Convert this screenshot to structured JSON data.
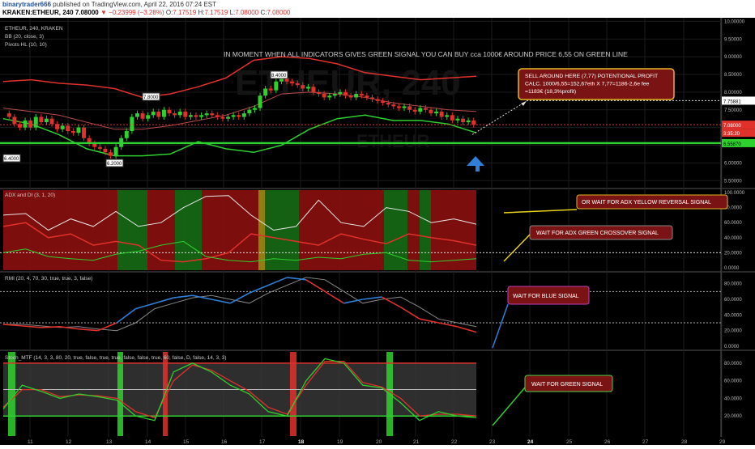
{
  "header": {
    "user": "binarytrader666",
    "published": "published on TradingView.com, April 22, 2016 07:24 EST",
    "symbol": "KRAKEN:ETHEUR, 240",
    "last": "7.08000",
    "change": "▼ −0.23999 (−3.28%)",
    "o_label": "O:",
    "o": "7.17519",
    "h_label": "H:",
    "h": "7.17519",
    "l_label": "L:",
    "l": "7.08000",
    "c_label": "C:",
    "c": "7.08000"
  },
  "panes": {
    "main": {
      "legend": [
        "ETHEUR, 240, KRAKEN",
        "BB (20, close, 3)",
        "Pivots HL (10, 10)"
      ],
      "watermark": "ETHEUR, 240",
      "watermark2": "ETHEUR",
      "top_note": "IN MOMENT WHEN ALL INDICATORS GIVES GREEN SIGNAL YOU CAN BUY  cca 1000€  AROUND PRICE 6,55 ON GREEN LINE",
      "sell_note": [
        "SELL AROUND HERE (7,77) POTENTIONAL PROFIT",
        "CALC. 1000/6,55=152,67eth X 7,77=1186-2,6e fee",
        "=1183€  (18,3%profit)"
      ],
      "pivot_labels": [
        "6.4000",
        "6.2000",
        "7.8000",
        "8.4000"
      ],
      "price_tags": {
        "target": "7.75881",
        "last": "7.08000",
        "countdown": "3:35:20",
        "support": "6.55870"
      },
      "axis": [
        "10.00000",
        "9.50000",
        "9.00000",
        "8.50000",
        "8.00000",
        "7.50000",
        "7.00000",
        "6.50000",
        "6.00000",
        "5.50000"
      ]
    },
    "adx": {
      "legend": "ADX and DI (3, 1, 20)",
      "note1": "OR WAIT FOR ADX YELLOW REVERSAL SIGNAL",
      "note2": "WAIT FOR ADX GREEN CROSSOVER SIGNAL",
      "axis": [
        "100.0000",
        "80.0000",
        "60.0000",
        "40.0000",
        "20.0000",
        "0.0000"
      ]
    },
    "rmi": {
      "legend": "RMI (20, 4, 70, 30, true, true, 3, false)",
      "note": "WAIT FOR BLUE SIGNAL",
      "axis": [
        "80.0000",
        "60.0000",
        "40.0000",
        "20.0000",
        "0.0000"
      ]
    },
    "stoch": {
      "legend": "Stoch_MTF (14, 3, 3, 80, 20, true, false, true, true, false, false, true, 60, false, D, false, 14, 3, 3)",
      "note": "WAIT FOR GREEN SIGNAL",
      "axis": [
        "80.0000",
        "60.0000",
        "40.0000",
        "20.0000"
      ]
    }
  },
  "x_axis": [
    "11",
    "12",
    "13",
    "14",
    "15",
    "16",
    "17",
    "18",
    "19",
    "20",
    "21",
    "22",
    "23",
    "24",
    "25",
    "26",
    "27",
    "28",
    "29"
  ],
  "colors": {
    "bg": "#000000",
    "red": "#e0312b",
    "green": "#2ed12e",
    "blue": "#2f7fd8",
    "yellow": "#e6d21a",
    "bgRed": "#8a1010",
    "bgGreen": "#166b16",
    "note": "#7a1414"
  },
  "chart_data": {
    "type": "line",
    "title": "ETHEUR, 240, KRAKEN",
    "x_dates": [
      "2016-04-11",
      "2016-04-12",
      "2016-04-13",
      "2016-04-14",
      "2016-04-15",
      "2016-04-16",
      "2016-04-17",
      "2016-04-18",
      "2016-04-19",
      "2016-04-20",
      "2016-04-21",
      "2016-04-22"
    ],
    "price_ylim": [
      5.3,
      10.1
    ],
    "candles_close": [
      7.3,
      7.1,
      7.0,
      7.2,
      7.0,
      7.3,
      7.15,
      7.25,
      7.1,
      6.95,
      7.05,
      6.9,
      6.85,
      7.0,
      6.7,
      6.55,
      6.45,
      6.4,
      6.3,
      6.2,
      6.45,
      6.7,
      6.9,
      7.3,
      7.4,
      7.25,
      7.35,
      7.45,
      7.3,
      7.5,
      7.4,
      7.35,
      7.45,
      7.3,
      7.35,
      7.3,
      7.35,
      7.4,
      7.35,
      7.3,
      7.25,
      7.3,
      7.35,
      7.3,
      7.4,
      7.5,
      7.55,
      7.9,
      8.1,
      8.05,
      8.3,
      8.4,
      8.3,
      8.25,
      8.2,
      8.1,
      8.15,
      8.0,
      7.95,
      7.85,
      7.9,
      7.95,
      8.0,
      7.9,
      7.85,
      7.95,
      7.9,
      7.85,
      7.8,
      7.75,
      7.7,
      7.65,
      7.6,
      7.55,
      7.6,
      7.5,
      7.45,
      7.55,
      7.5,
      7.4,
      7.45,
      7.3,
      7.35,
      7.2,
      7.25,
      7.15,
      7.2,
      7.08
    ],
    "bb_upper": [
      8.3,
      8.35,
      8.25,
      8.2,
      8.1,
      7.85,
      7.95,
      8.15,
      8.4,
      8.9,
      9.0,
      8.95,
      8.8,
      8.55,
      8.45,
      8.35,
      8.4,
      8.45
    ],
    "bb_middle": [
      7.55,
      7.45,
      7.35,
      7.15,
      6.95,
      6.95,
      7.05,
      7.2,
      7.35,
      7.6,
      7.95,
      8.0,
      7.95,
      7.85,
      7.7,
      7.6,
      7.5,
      7.45
    ],
    "bb_lower": [
      7.25,
      7.1,
      6.8,
      6.4,
      6.2,
      6.2,
      6.25,
      6.6,
      6.4,
      6.3,
      6.5,
      6.95,
      7.25,
      7.35,
      7.2,
      7.2,
      7.1,
      6.85
    ],
    "support_level": 6.5587,
    "target_level": 7.75881,
    "last_price": 7.08,
    "adx_ylim": [
      0,
      100
    ],
    "adx_series": [
      {
        "name": "ADX",
        "values": [
          70,
          72,
          50,
          65,
          55,
          75,
          55,
          60,
          80,
          95,
          96,
          70,
          50,
          55,
          90,
          60,
          55,
          80,
          75,
          60,
          65,
          58
        ]
      },
      {
        "name": "DI-",
        "values": [
          55,
          60,
          40,
          45,
          30,
          35,
          30,
          10,
          8,
          12,
          20,
          45,
          40,
          35,
          30,
          45,
          38,
          32,
          45,
          40,
          36,
          30
        ]
      },
      {
        "name": "DI+",
        "values": [
          20,
          25,
          15,
          12,
          10,
          18,
          22,
          30,
          35,
          15,
          10,
          8,
          12,
          10,
          14,
          12,
          18,
          20,
          10,
          8,
          10,
          12
        ]
      }
    ],
    "rmi_ylim": [
      0,
      90
    ],
    "rmi_series": [
      {
        "name": "RMI",
        "values": [
          28,
          26,
          24,
          25,
          22,
          20,
          30,
          48,
          55,
          62,
          65,
          60,
          55,
          68,
          78,
          88,
          85,
          70,
          55,
          60,
          63,
          50,
          35,
          30,
          25,
          18
        ]
      }
    ],
    "stoch_ylim": [
      0,
      90
    ],
    "stoch_series": [
      {
        "name": "%K",
        "values": [
          28,
          55,
          48,
          40,
          45,
          42,
          38,
          20,
          15,
          70,
          80,
          70,
          55,
          45,
          25,
          20,
          60,
          85,
          80,
          55,
          52,
          35,
          15,
          25,
          20,
          18
        ]
      },
      {
        "name": "%D",
        "values": [
          30,
          50,
          50,
          42,
          44,
          43,
          40,
          25,
          18,
          60,
          78,
          72,
          60,
          48,
          30,
          22,
          55,
          82,
          82,
          58,
          53,
          40,
          20,
          22,
          22,
          20
        ]
      }
    ]
  }
}
